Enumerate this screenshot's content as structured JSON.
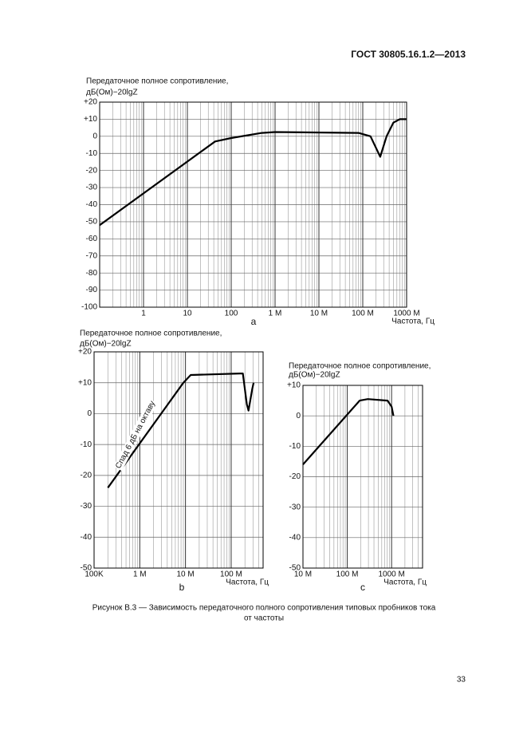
{
  "header": {
    "title": "ГОСТ 30805.16.1.2—2013"
  },
  "chart_data": [
    {
      "type": "line",
      "panel": "a",
      "ylabel": [
        "Передаточное полное сопротивление,",
        "дБ(Ом)−20lgZ"
      ],
      "xlabel": "Частота, Гц",
      "log_x": true,
      "grid": true,
      "color": "#000000",
      "x": [
        0.1,
        43,
        100,
        500,
        1000,
        80000,
        150000,
        250000,
        350000,
        500000,
        700000,
        1000000
      ],
      "values": [
        -52,
        -3,
        -1,
        2,
        2.5,
        2,
        0,
        -12,
        0,
        8,
        10,
        10
      ],
      "xlim": [
        0.1,
        1000000
      ],
      "xticks": [
        1,
        10,
        100,
        {
          "value": 1000,
          "label": "1 M"
        },
        {
          "value": 10000,
          "label": "10 M"
        },
        {
          "value": 100000,
          "label": "100 M"
        },
        {
          "value": 1000000,
          "label": "1000 M"
        }
      ],
      "ylim": [
        -100,
        20
      ],
      "yticks": [
        {
          "value": 20,
          "label": "+20"
        },
        {
          "value": 10,
          "label": "+10"
        },
        0,
        -10,
        -20,
        -30,
        -40,
        -50,
        -60,
        -70,
        -80,
        -90,
        -100
      ]
    },
    {
      "type": "line",
      "panel": "b",
      "ylabel": [
        "Передаточное полное сопротивление,",
        "дБ(Ом)−20lgZ"
      ],
      "xlabel": "Частота, Гц",
      "log_x": true,
      "grid": true,
      "color": "#000000",
      "annotation": "Спад 6 дБ на октаву",
      "x": [
        200000,
        9000000,
        13000000,
        156000000,
        180000000,
        220000000,
        240000000,
        290000000,
        310000000
      ],
      "values": [
        -24,
        10,
        12.5,
        13,
        13,
        3,
        1,
        8,
        10
      ],
      "xlim": [
        100000,
        500000000
      ],
      "xticks": [
        {
          "value": 100000,
          "label": "100K"
        },
        {
          "value": 1000000,
          "label": "1 M"
        },
        {
          "value": 10000000,
          "label": "10 M"
        },
        {
          "value": 100000000,
          "label": "100 M"
        }
      ],
      "ylim": [
        -50,
        20
      ],
      "yticks": [
        {
          "value": 20,
          "label": "+20"
        },
        {
          "value": 10,
          "label": "+10"
        },
        0,
        -10,
        -20,
        -30,
        -40,
        -50
      ]
    },
    {
      "type": "line",
      "panel": "c",
      "ylabel": [
        "Передаточное полное сопротивление,",
        "дБ(Ом)−20lgZ"
      ],
      "xlabel": "Частота, Гц",
      "log_x": true,
      "grid": true,
      "color": "#000000",
      "x": [
        10000000,
        190000000,
        290000000,
        810000000,
        1000000000,
        1100000000
      ],
      "values": [
        -16,
        5,
        5.5,
        5,
        3,
        0
      ],
      "xlim": [
        10000000,
        5000000000
      ],
      "xticks": [
        {
          "value": 10000000,
          "label": "10 M"
        },
        {
          "value": 100000000,
          "label": "100 M"
        },
        {
          "value": 1000000000,
          "label": "1000 M"
        }
      ],
      "ylim": [
        -50,
        10
      ],
      "yticks": [
        {
          "value": 10,
          "label": "+10"
        },
        0,
        -10,
        -20,
        -30,
        -40,
        -50
      ]
    }
  ],
  "caption": [
    "Рисунок В.3 — Зависимость передаточного полного сопротивления типовых пробников тока",
    "от частоты"
  ],
  "page_number": "33"
}
